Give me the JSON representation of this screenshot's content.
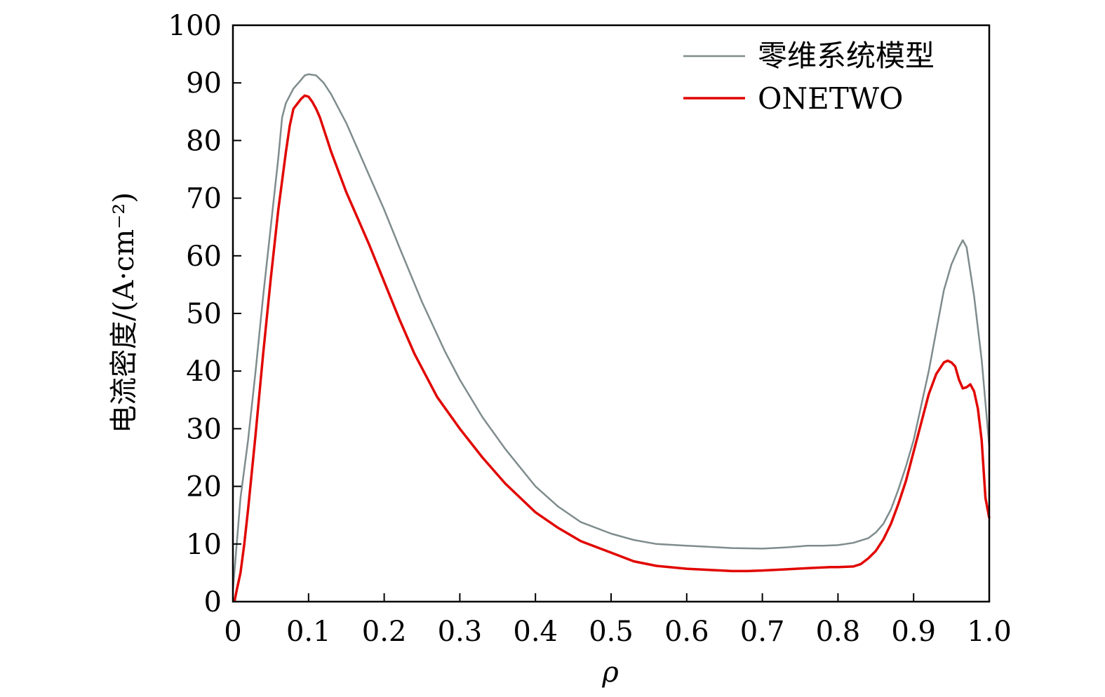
{
  "chart_data": {
    "type": "line",
    "title": "",
    "xlabel": "ρ",
    "ylabel": "电流密度/(A·cm⁻²)",
    "xlim": [
      0,
      1.0
    ],
    "ylim": [
      0,
      100
    ],
    "x_ticks": [
      "0",
      "0.1",
      "0.2",
      "0.3",
      "0.4",
      "0.5",
      "0.6",
      "0.7",
      "0.8",
      "0.9",
      "1.0"
    ],
    "y_ticks": [
      "0",
      "10",
      "20",
      "30",
      "40",
      "50",
      "60",
      "70",
      "80",
      "90",
      "100"
    ],
    "grid": false,
    "legend_position": "top-right",
    "series": [
      {
        "name": "零维系统模型",
        "color": "#7f8c8d",
        "x": [
          0,
          0.005,
          0.01,
          0.02,
          0.03,
          0.04,
          0.05,
          0.06,
          0.065,
          0.07,
          0.08,
          0.09,
          0.095,
          0.1,
          0.11,
          0.12,
          0.13,
          0.14,
          0.15,
          0.16,
          0.18,
          0.2,
          0.22,
          0.25,
          0.28,
          0.3,
          0.33,
          0.36,
          0.4,
          0.43,
          0.46,
          0.5,
          0.53,
          0.56,
          0.6,
          0.63,
          0.66,
          0.7,
          0.73,
          0.76,
          0.78,
          0.8,
          0.82,
          0.84,
          0.85,
          0.86,
          0.87,
          0.88,
          0.89,
          0.9,
          0.91,
          0.92,
          0.93,
          0.94,
          0.95,
          0.96,
          0.965,
          0.97,
          0.98,
          0.99,
          1.0
        ],
        "y": [
          2,
          10,
          18,
          28,
          40,
          53,
          65,
          77,
          84,
          86.5,
          89,
          90.5,
          91.3,
          91.5,
          91.3,
          90,
          88,
          85.5,
          83,
          80,
          74,
          68,
          61.5,
          52,
          43.5,
          38.5,
          32,
          26.5,
          20,
          16.5,
          13.8,
          11.8,
          10.7,
          10,
          9.7,
          9.5,
          9.3,
          9.2,
          9.4,
          9.7,
          9.7,
          9.8,
          10.2,
          11,
          12,
          13.5,
          16,
          19.5,
          23.5,
          28,
          34,
          40,
          47,
          54,
          58.5,
          61.5,
          62.7,
          61.5,
          53,
          42,
          27
        ]
      },
      {
        "name": "ONETWO",
        "color": "#e10600",
        "x": [
          0.002,
          0.005,
          0.01,
          0.015,
          0.02,
          0.03,
          0.04,
          0.05,
          0.06,
          0.07,
          0.075,
          0.08,
          0.09,
          0.095,
          0.1,
          0.105,
          0.11,
          0.115,
          0.12,
          0.125,
          0.13,
          0.14,
          0.15,
          0.16,
          0.18,
          0.2,
          0.22,
          0.24,
          0.27,
          0.3,
          0.33,
          0.36,
          0.4,
          0.43,
          0.46,
          0.5,
          0.53,
          0.56,
          0.6,
          0.63,
          0.66,
          0.68,
          0.7,
          0.73,
          0.76,
          0.79,
          0.8,
          0.82,
          0.83,
          0.84,
          0.85,
          0.86,
          0.87,
          0.88,
          0.89,
          0.9,
          0.91,
          0.92,
          0.93,
          0.94,
          0.945,
          0.95,
          0.955,
          0.96,
          0.965,
          0.97,
          0.975,
          0.98,
          0.985,
          0.99,
          0.995,
          1.0
        ],
        "y": [
          0,
          2,
          5,
          10,
          16,
          29,
          43,
          56,
          68,
          78,
          82.5,
          85.5,
          87.2,
          87.8,
          87.6,
          86.7,
          85.5,
          84,
          82,
          80,
          78,
          74.5,
          71,
          68,
          62,
          55.5,
          49,
          43,
          35.5,
          30,
          25,
          20.5,
          15.5,
          12.8,
          10.5,
          8.5,
          7,
          6.2,
          5.7,
          5.5,
          5.3,
          5.3,
          5.4,
          5.6,
          5.8,
          6,
          6,
          6.1,
          6.5,
          7.5,
          8.8,
          10.8,
          13.5,
          17,
          21,
          26,
          31,
          36,
          39.5,
          41.5,
          41.8,
          41.5,
          40.8,
          38.5,
          37,
          37.2,
          37.7,
          36.5,
          33.5,
          28,
          18,
          14.5
        ]
      }
    ]
  }
}
